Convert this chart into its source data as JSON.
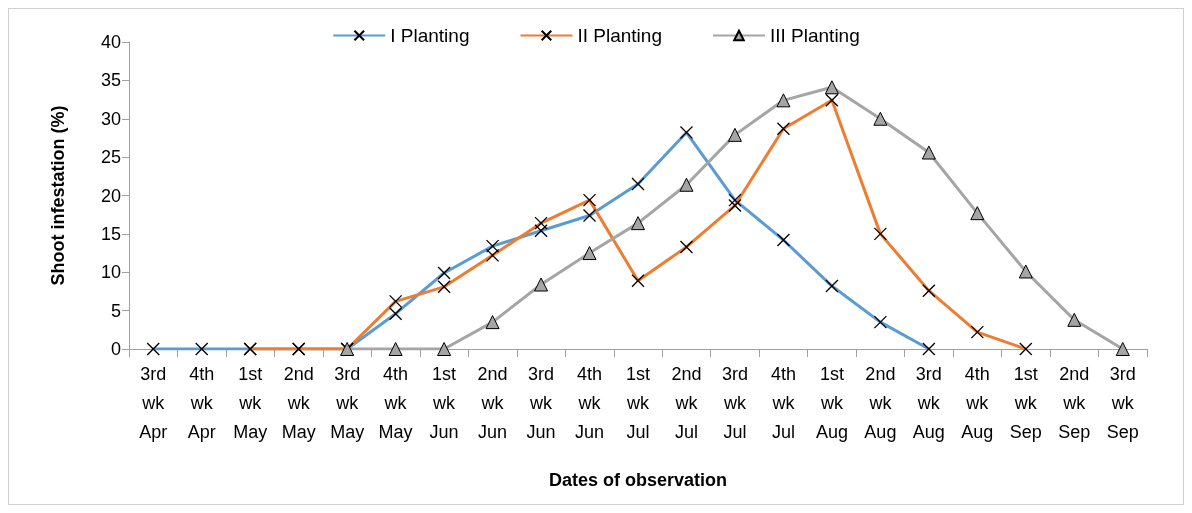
{
  "chart_data": {
    "type": "line",
    "xlabel": "Dates of observation",
    "ylabel": "Shoot infestation (%)",
    "categories": [
      "3rd wk Apr",
      "4th wk Apr",
      "1st wk May",
      "2nd wk May",
      "3rd wk May",
      "4th wk May",
      "1st wk Jun",
      "2nd wk Jun",
      "3rd wk Jun",
      "4th wk Jun",
      "1st wk Jul",
      "2nd wk Jul",
      "3rd wk Jul",
      "4th wk Jul",
      "1st wk Aug",
      "2nd wk Aug",
      "3rd wk Aug",
      "4th wk Aug",
      "1st wk Sep",
      "2nd wk Sep",
      "3rd wk Sep"
    ],
    "series": [
      {
        "name": "I Planting",
        "color": "#5b9bd5",
        "marker": "cross",
        "values": [
          0,
          0,
          0,
          0,
          0,
          4.6,
          9.9,
          13.4,
          15.4,
          17.4,
          21.5,
          28.2,
          19.4,
          14.2,
          8.2,
          3.5,
          0,
          null,
          null,
          null,
          null
        ]
      },
      {
        "name": "II Planting",
        "color": "#ed7d31",
        "marker": "cross",
        "values": [
          null,
          null,
          0,
          0,
          0,
          6.2,
          8.1,
          12.2,
          16.4,
          19.4,
          8.9,
          13.3,
          18.7,
          28.7,
          32.4,
          15.0,
          7.6,
          2.2,
          0,
          null,
          null
        ]
      },
      {
        "name": "III Planting",
        "color": "#a5a5a5",
        "marker": "triangle",
        "values": [
          null,
          null,
          null,
          null,
          0,
          0,
          0,
          3.5,
          8.4,
          12.5,
          16.4,
          21.4,
          27.9,
          32.4,
          34.1,
          30.0,
          25.6,
          17.7,
          10.1,
          3.8,
          0
        ]
      }
    ],
    "ylim": [
      0,
      40
    ],
    "yticks": [
      0,
      5,
      10,
      15,
      20,
      25,
      30,
      35,
      40
    ],
    "grid": false,
    "legend": "top"
  }
}
